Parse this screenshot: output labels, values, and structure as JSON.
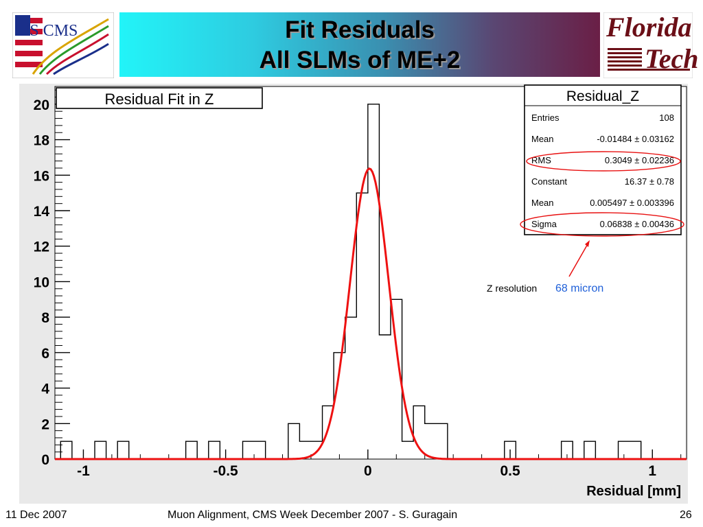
{
  "slide": {
    "title_line1": "Fit Residuals",
    "title_line2": "All SLMs of ME+2",
    "logo_left": "US CMS",
    "logo_right_line1": "Florida",
    "logo_right_line2": "Tech"
  },
  "footer": {
    "date": "11 Dec 2007",
    "center": "Muon Alignment, CMS Week December 2007  - S. Guragain",
    "page": "26"
  },
  "annotation": {
    "label": "Z resolution",
    "value": "68 micron",
    "arrow_color": "#e81010",
    "value_color": "#1e5fd8"
  },
  "stats_box": {
    "title": "Residual_Z",
    "rows": [
      {
        "label": "Entries",
        "value": "108"
      },
      {
        "label": "Mean",
        "value": "-0.01484 ± 0.03162"
      },
      {
        "label": "RMS",
        "value": "0.3049 ± 0.02236"
      },
      {
        "label": "Constant",
        "value": "16.37 ± 0.78"
      },
      {
        "label": "Mean",
        "value": "0.005497 ± 0.003396"
      },
      {
        "label": "Sigma",
        "value": "0.06838 ± 0.00436"
      }
    ]
  },
  "chart_data": {
    "type": "histogram",
    "title": "Residual Fit in Z",
    "xlabel": "Residual [mm]",
    "ylabel": "",
    "xlim": [
      -1.1,
      1.12
    ],
    "ylim": [
      0,
      21
    ],
    "xticks": [
      "-1",
      "-0.5",
      "0",
      "0.5",
      "1"
    ],
    "xtick_values": [
      -1,
      -0.5,
      0,
      0.5,
      1
    ],
    "yticks": [
      "0",
      "2",
      "4",
      "6",
      "8",
      "10",
      "12",
      "14",
      "16",
      "18",
      "20"
    ],
    "ytick_values": [
      0,
      2,
      4,
      6,
      8,
      10,
      12,
      14,
      16,
      18,
      20
    ],
    "bin_width": 0.04,
    "bins": [
      {
        "x0": -1.08,
        "count": 1
      },
      {
        "x0": -0.96,
        "count": 1
      },
      {
        "x0": -0.88,
        "count": 1
      },
      {
        "x0": -0.64,
        "count": 1
      },
      {
        "x0": -0.56,
        "count": 1
      },
      {
        "x0": -0.44,
        "count": 1
      },
      {
        "x0": -0.4,
        "count": 1
      },
      {
        "x0": -0.28,
        "count": 2
      },
      {
        "x0": -0.24,
        "count": 1
      },
      {
        "x0": -0.2,
        "count": 1
      },
      {
        "x0": -0.16,
        "count": 3
      },
      {
        "x0": -0.12,
        "count": 6
      },
      {
        "x0": -0.08,
        "count": 8
      },
      {
        "x0": -0.04,
        "count": 15
      },
      {
        "x0": 0.0,
        "count": 20
      },
      {
        "x0": 0.04,
        "count": 7
      },
      {
        "x0": 0.08,
        "count": 9
      },
      {
        "x0": 0.12,
        "count": 1
      },
      {
        "x0": 0.16,
        "count": 3
      },
      {
        "x0": 0.2,
        "count": 2
      },
      {
        "x0": 0.24,
        "count": 2
      },
      {
        "x0": 0.48,
        "count": 1
      },
      {
        "x0": 0.68,
        "count": 1
      },
      {
        "x0": 0.76,
        "count": 1
      },
      {
        "x0": 0.88,
        "count": 1
      },
      {
        "x0": 0.92,
        "count": 1
      }
    ],
    "fit": {
      "type": "gaussian",
      "constant": 16.37,
      "mean": 0.005497,
      "sigma": 0.06838,
      "color": "#ee1111"
    },
    "histogram_color": "#000000",
    "legend": "none",
    "grid": false
  }
}
